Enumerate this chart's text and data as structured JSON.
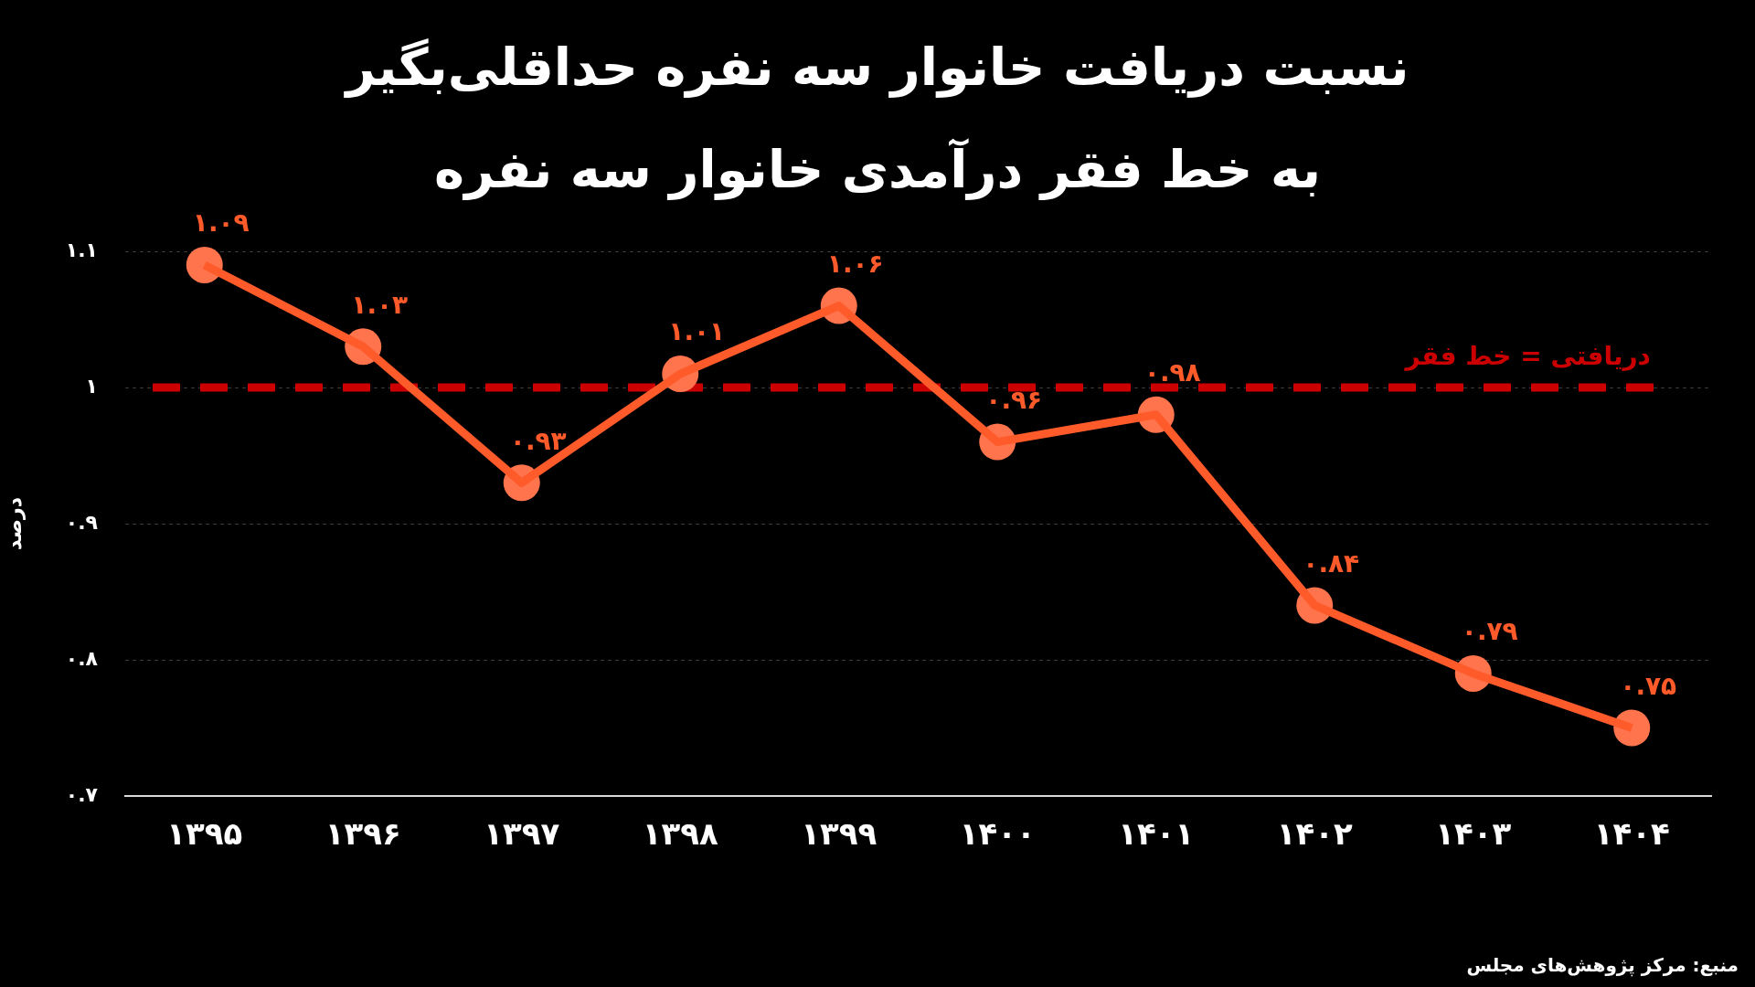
{
  "chart_data": {
    "type": "line",
    "title": "نسبت دریافت خانوار سه نفره حداقلی‌بگیر\nبه خط فقر درآمدی خانوار سه نفره",
    "ylabel": "درصد",
    "categories": [
      "۱۳۹۵",
      "۱۳۹۶",
      "۱۳۹۷",
      "۱۳۹۸",
      "۱۳۹۹",
      "۱۴۰۰",
      "۱۴۰۱",
      "۱۴۰۲",
      "۱۴۰۳",
      "۱۴۰۴"
    ],
    "values": [
      1.09,
      1.03,
      0.93,
      1.01,
      1.06,
      0.96,
      0.98,
      0.84,
      0.79,
      0.75
    ],
    "value_labels": [
      "۱.۰۹",
      "۱.۰۳",
      "۰.۹۳",
      "۱.۰۱",
      "۱.۰۶",
      "۰.۹۶",
      "۰.۹۸",
      "۰.۸۴",
      "۰.۷۹",
      "۰.۷۵"
    ],
    "color": "#ff5a2a",
    "marker": "circle",
    "line_style": "solid",
    "grid": "y",
    "ylim": [
      0.7,
      1.1
    ],
    "yticks": [
      {
        "value": 0.7,
        "label": "۰.۷"
      },
      {
        "value": 0.8,
        "label": "۰.۸"
      },
      {
        "value": 0.9,
        "label": "۰.۹"
      },
      {
        "value": 1,
        "label": "۱"
      },
      {
        "value": 1.1,
        "label": "۱.۱"
      }
    ],
    "ref_lines": [
      {
        "axis": "y",
        "value": 1,
        "label": "دریافتی = خط فقر",
        "color": "#cc0000",
        "line_style": "dashed"
      }
    ],
    "annotations": [
      "منبع: مرکز پژوهش‌های مجلس"
    ]
  }
}
